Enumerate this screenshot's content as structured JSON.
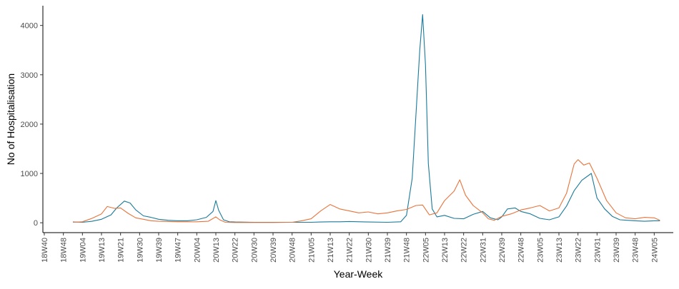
{
  "chart_data": {
    "type": "line",
    "title": "",
    "xlabel": "Year-Week",
    "ylabel": "No of Hospitalisation",
    "ylim": [
      -200,
      4400
    ],
    "yticks": [
      0,
      1000,
      2000,
      3000,
      4000
    ],
    "grid": false,
    "legend": "none",
    "x_categories": [
      "18W40",
      "18W48",
      "19W04",
      "19W13",
      "19W21",
      "19W30",
      "19W39",
      "19W47",
      "20W04",
      "20W13",
      "20W22",
      "20W30",
      "20W39",
      "20W48",
      "21W05",
      "21W13",
      "21W22",
      "21W30",
      "21W39",
      "21W48",
      "22W05",
      "22W13",
      "22W22",
      "22W31",
      "22W39",
      "22W48",
      "23W05",
      "23W13",
      "23W22",
      "23W31",
      "23W39",
      "23W48",
      "24W05"
    ],
    "x_range_index": [
      0,
      32.7
    ],
    "series": [
      {
        "color": "#1a7a9a",
        "points": [
          [
            1.5,
            15
          ],
          [
            2,
            10
          ],
          [
            2.5,
            30
          ],
          [
            3,
            70
          ],
          [
            3.5,
            160
          ],
          [
            3.8,
            300
          ],
          [
            4.2,
            440
          ],
          [
            4.5,
            400
          ],
          [
            4.8,
            260
          ],
          [
            5.2,
            140
          ],
          [
            5.6,
            110
          ],
          [
            6,
            70
          ],
          [
            6.5,
            50
          ],
          [
            7,
            40
          ],
          [
            7.5,
            40
          ],
          [
            8,
            60
          ],
          [
            8.5,
            110
          ],
          [
            8.85,
            230
          ],
          [
            9,
            450
          ],
          [
            9.15,
            250
          ],
          [
            9.4,
            60
          ],
          [
            9.7,
            20
          ],
          [
            10,
            15
          ],
          [
            11,
            10
          ],
          [
            12,
            10
          ],
          [
            13,
            10
          ],
          [
            14,
            10
          ],
          [
            14.5,
            15
          ],
          [
            15,
            20
          ],
          [
            15.5,
            20
          ],
          [
            16,
            25
          ],
          [
            17,
            15
          ],
          [
            18,
            10
          ],
          [
            18.7,
            20
          ],
          [
            19,
            150
          ],
          [
            19.3,
            900
          ],
          [
            19.5,
            2200
          ],
          [
            19.7,
            3500
          ],
          [
            19.85,
            4220
          ],
          [
            20,
            3200
          ],
          [
            20.15,
            1200
          ],
          [
            20.35,
            280
          ],
          [
            20.6,
            120
          ],
          [
            21,
            150
          ],
          [
            21.5,
            90
          ],
          [
            22,
            80
          ],
          [
            22.5,
            170
          ],
          [
            23,
            230
          ],
          [
            23.4,
            100
          ],
          [
            23.8,
            60
          ],
          [
            24,
            120
          ],
          [
            24.3,
            280
          ],
          [
            24.7,
            300
          ],
          [
            25,
            230
          ],
          [
            25.5,
            180
          ],
          [
            26,
            90
          ],
          [
            26.5,
            60
          ],
          [
            27,
            120
          ],
          [
            27.4,
            340
          ],
          [
            27.8,
            650
          ],
          [
            28.2,
            860
          ],
          [
            28.7,
            1000
          ],
          [
            29,
            500
          ],
          [
            29.4,
            280
          ],
          [
            29.8,
            130
          ],
          [
            30.2,
            60
          ],
          [
            30.6,
            50
          ],
          [
            31,
            40
          ],
          [
            31.5,
            30
          ],
          [
            32,
            40
          ],
          [
            32.3,
            40
          ]
        ]
      },
      {
        "color": "#e8743b",
        "points": [
          [
            1.5,
            10
          ],
          [
            2,
            20
          ],
          [
            2.5,
            90
          ],
          [
            3,
            180
          ],
          [
            3.3,
            330
          ],
          [
            3.7,
            290
          ],
          [
            4,
            300
          ],
          [
            4.4,
            190
          ],
          [
            4.8,
            100
          ],
          [
            5.2,
            70
          ],
          [
            5.6,
            40
          ],
          [
            6,
            30
          ],
          [
            7,
            20
          ],
          [
            8,
            20
          ],
          [
            8.6,
            30
          ],
          [
            9,
            120
          ],
          [
            9.2,
            60
          ],
          [
            9.5,
            10
          ],
          [
            10,
            5
          ],
          [
            12,
            5
          ],
          [
            13,
            10
          ],
          [
            13.5,
            40
          ],
          [
            14,
            80
          ],
          [
            14.5,
            240
          ],
          [
            15,
            370
          ],
          [
            15.5,
            280
          ],
          [
            16,
            240
          ],
          [
            16.5,
            200
          ],
          [
            17,
            220
          ],
          [
            17.5,
            180
          ],
          [
            18,
            200
          ],
          [
            18.5,
            240
          ],
          [
            19,
            270
          ],
          [
            19.5,
            350
          ],
          [
            19.85,
            360
          ],
          [
            20.2,
            160
          ],
          [
            20.6,
            200
          ],
          [
            21,
            450
          ],
          [
            21.5,
            640
          ],
          [
            21.8,
            870
          ],
          [
            22.1,
            560
          ],
          [
            22.5,
            350
          ],
          [
            23,
            200
          ],
          [
            23.3,
            80
          ],
          [
            23.6,
            50
          ],
          [
            24,
            130
          ],
          [
            24.5,
            180
          ],
          [
            25,
            260
          ],
          [
            25.5,
            300
          ],
          [
            26,
            350
          ],
          [
            26.5,
            240
          ],
          [
            27,
            300
          ],
          [
            27.4,
            600
          ],
          [
            27.8,
            1190
          ],
          [
            28,
            1280
          ],
          [
            28.3,
            1170
          ],
          [
            28.6,
            1210
          ],
          [
            29,
            900
          ],
          [
            29.5,
            450
          ],
          [
            30,
            200
          ],
          [
            30.5,
            100
          ],
          [
            31,
            80
          ],
          [
            31.5,
            110
          ],
          [
            32,
            100
          ],
          [
            32.3,
            50
          ]
        ]
      }
    ]
  }
}
